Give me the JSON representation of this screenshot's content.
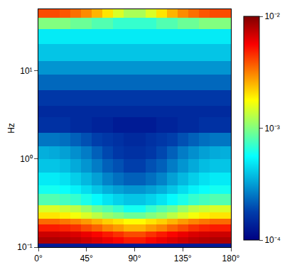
{
  "chart_data": {
    "type": "heatmap",
    "y_label": "Hz",
    "log": "y",
    "x": [
      0,
      10,
      20,
      30,
      40,
      50,
      60,
      70,
      80,
      90,
      100,
      110,
      120,
      130,
      140,
      150,
      160,
      170,
      180
    ],
    "y": [
      0.1,
      0.11,
      0.13,
      0.15,
      0.18,
      0.21,
      0.25,
      0.3,
      0.4,
      0.5,
      0.7,
      1,
      1.4,
      2,
      3,
      4,
      6,
      9,
      13,
      20,
      30,
      40,
      50
    ],
    "xlim": [
      0,
      180
    ],
    "xticks": [
      {
        "value": 0,
        "label": "0°"
      },
      {
        "value": 45,
        "label": "45°"
      },
      {
        "value": 90,
        "label": "90°"
      },
      {
        "value": 135,
        "label": "135°"
      },
      {
        "value": 180,
        "label": "180°"
      }
    ],
    "ylim": [
      0.1,
      50
    ],
    "yticks": [
      {
        "value": 0.1,
        "label": "10⁻¹"
      },
      {
        "value": 1,
        "label": "10⁰"
      },
      {
        "value": 10,
        "label": "10¹"
      }
    ],
    "colorbar_range": [
      0.0001,
      0.01
    ],
    "colorbar_ticks": [
      {
        "value": 0.0001,
        "label": "10⁻⁴"
      },
      {
        "value": 0.001,
        "label": "10⁻³"
      },
      {
        "value": 0.01,
        "label": "10⁻²"
      }
    ],
    "z": [
      [
        0.00013,
        0.00013,
        0.00013,
        0.00013,
        0.00013,
        0.00013,
        0.00013,
        0.00013,
        0.00013,
        0.00013,
        0.00013,
        0.00013,
        0.00013,
        0.00013,
        0.00013,
        0.00013,
        0.00013,
        0.00013
      ],
      [
        0.008,
        0.008,
        0.0078,
        0.0075,
        0.007,
        0.0065,
        0.006,
        0.0055,
        0.005,
        0.005,
        0.0055,
        0.006,
        0.0065,
        0.007,
        0.0075,
        0.0078,
        0.008,
        0.008
      ],
      [
        0.007,
        0.007,
        0.0068,
        0.0065,
        0.006,
        0.0055,
        0.005,
        0.0045,
        0.004,
        0.004,
        0.0045,
        0.005,
        0.0055,
        0.006,
        0.0065,
        0.0068,
        0.007,
        0.007
      ],
      [
        0.005,
        0.005,
        0.0048,
        0.0045,
        0.004,
        0.0036,
        0.0031,
        0.0028,
        0.0025,
        0.0025,
        0.0028,
        0.0031,
        0.0036,
        0.004,
        0.0045,
        0.0048,
        0.005,
        0.005
      ],
      [
        0.0035,
        0.0035,
        0.0033,
        0.0031,
        0.0028,
        0.0025,
        0.0022,
        0.002,
        0.0018,
        0.0018,
        0.002,
        0.0022,
        0.0025,
        0.0028,
        0.0031,
        0.0033,
        0.0035,
        0.0035
      ],
      [
        0.002,
        0.002,
        0.0019,
        0.0017,
        0.0015,
        0.0013,
        0.0011,
        0.001,
        0.0009,
        0.0009,
        0.001,
        0.0011,
        0.0013,
        0.0015,
        0.0017,
        0.0019,
        0.002,
        0.002
      ],
      [
        0.0015,
        0.0015,
        0.0014,
        0.0013,
        0.0011,
        0.0009,
        0.0008,
        0.0007,
        0.0006,
        0.0006,
        0.0007,
        0.0008,
        0.0009,
        0.0011,
        0.0013,
        0.0014,
        0.0015,
        0.0015
      ],
      [
        0.0008,
        0.0008,
        0.00075,
        0.0007,
        0.00062,
        0.00055,
        0.00048,
        0.00043,
        0.0004,
        0.0004,
        0.00043,
        0.00048,
        0.00055,
        0.00062,
        0.0007,
        0.00075,
        0.0008,
        0.0008
      ],
      [
        0.0006,
        0.0006,
        0.00057,
        0.00052,
        0.00046,
        0.0004,
        0.00035,
        0.00032,
        0.0003,
        0.0003,
        0.00032,
        0.00035,
        0.0004,
        0.00046,
        0.00052,
        0.00057,
        0.0006,
        0.0006
      ],
      [
        0.0005,
        0.0005,
        0.00047,
        0.00042,
        0.00037,
        0.00032,
        0.00027,
        0.00024,
        0.00022,
        0.00022,
        0.00024,
        0.00027,
        0.00032,
        0.00037,
        0.00042,
        0.00047,
        0.0005,
        0.0005
      ],
      [
        0.0004,
        0.0004,
        0.00038,
        0.00034,
        0.0003,
        0.00026,
        0.00022,
        0.0002,
        0.00018,
        0.00018,
        0.0002,
        0.00022,
        0.00026,
        0.0003,
        0.00034,
        0.00038,
        0.0004,
        0.0004
      ],
      [
        0.00035,
        0.00034,
        0.00032,
        0.00029,
        0.00026,
        0.00022,
        0.00019,
        0.00017,
        0.00016,
        0.00016,
        0.00017,
        0.00019,
        0.00022,
        0.00026,
        0.00029,
        0.00032,
        0.00034,
        0.00035
      ],
      [
        0.00025,
        0.00025,
        0.00024,
        0.00022,
        0.0002,
        0.00018,
        0.00017,
        0.00016,
        0.00015,
        0.00015,
        0.00016,
        0.00017,
        0.00018,
        0.0002,
        0.00022,
        0.00024,
        0.00025,
        0.00025
      ],
      [
        0.00016,
        0.00016,
        0.00016,
        0.00015,
        0.00015,
        0.00014,
        0.00014,
        0.00013,
        0.00013,
        0.00013,
        0.00013,
        0.00014,
        0.00014,
        0.00015,
        0.00015,
        0.00016,
        0.00016,
        0.00016
      ],
      [
        0.00015,
        0.00015,
        0.00015,
        0.00015,
        0.00015,
        0.00015,
        0.00015,
        0.00015,
        0.00015,
        0.00015,
        0.00015,
        0.00015,
        0.00015,
        0.00015,
        0.00015,
        0.00015,
        0.00015,
        0.00015
      ],
      [
        0.00017,
        0.00017,
        0.00017,
        0.00017,
        0.00017,
        0.00017,
        0.00017,
        0.00017,
        0.00017,
        0.00017,
        0.00017,
        0.00017,
        0.00017,
        0.00017,
        0.00017,
        0.00017,
        0.00017,
        0.00017
      ],
      [
        0.00023,
        0.00023,
        0.00023,
        0.00023,
        0.00023,
        0.00023,
        0.00023,
        0.00023,
        0.00023,
        0.00023,
        0.00023,
        0.00023,
        0.00023,
        0.00023,
        0.00023,
        0.00023,
        0.00023,
        0.00023
      ],
      [
        0.0003,
        0.0003,
        0.0003,
        0.0003,
        0.0003,
        0.0003,
        0.0003,
        0.0003,
        0.0003,
        0.0003,
        0.0003,
        0.0003,
        0.0003,
        0.0003,
        0.0003,
        0.0003,
        0.0003,
        0.0003
      ],
      [
        0.0004,
        0.0004,
        0.0004,
        0.0004,
        0.0004,
        0.0004,
        0.0004,
        0.0004,
        0.0004,
        0.0004,
        0.0004,
        0.0004,
        0.0004,
        0.0004,
        0.0004,
        0.0004,
        0.0004,
        0.0004
      ],
      [
        0.0005,
        0.0005,
        0.0005,
        0.0005,
        0.0005,
        0.0005,
        0.0005,
        0.0005,
        0.0005,
        0.0005,
        0.0005,
        0.0005,
        0.0005,
        0.0005,
        0.0005,
        0.0005,
        0.0005,
        0.0005
      ],
      [
        0.001,
        0.001,
        0.001,
        0.0009,
        0.0009,
        0.0008,
        0.0008,
        0.0007,
        0.0007,
        0.0007,
        0.0007,
        0.0008,
        0.0008,
        0.0009,
        0.0009,
        0.001,
        0.001,
        0.001
      ],
      [
        0.004,
        0.004,
        0.0038,
        0.0034,
        0.003,
        0.0025,
        0.002,
        0.0015,
        0.0012,
        0.0012,
        0.0015,
        0.002,
        0.0025,
        0.003,
        0.0034,
        0.0038,
        0.004,
        0.004
      ]
    ]
  }
}
